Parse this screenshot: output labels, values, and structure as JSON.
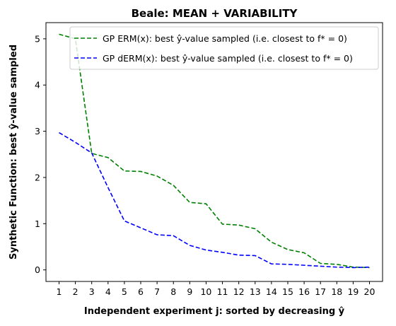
{
  "chart_data": {
    "type": "line",
    "title": "Beale: MEAN + VARIABILITY",
    "xlabel": "Independent experiment j: sorted by decreasing ŷ",
    "ylabel": "Synthetic Function: best ŷ-value sampled",
    "x": [
      1,
      2,
      3,
      4,
      5,
      6,
      7,
      8,
      9,
      10,
      11,
      12,
      13,
      14,
      15,
      16,
      17,
      18,
      19,
      20
    ],
    "xticks": [
      "1",
      "2",
      "3",
      "4",
      "5",
      "6",
      "7",
      "8",
      "9",
      "10",
      "11",
      "12",
      "13",
      "14",
      "15",
      "16",
      "17",
      "18",
      "19",
      "20"
    ],
    "yticks": [
      "0",
      "1",
      "2",
      "3",
      "4",
      "5"
    ],
    "xlim": [
      0.2,
      20.8
    ],
    "ylim": [
      -0.25,
      5.35
    ],
    "grid": false,
    "legend_position": "top-right",
    "series": [
      {
        "name": "GP ERM(x):   best ŷ-value sampled (i.e. closest to f* = 0)",
        "color": "#008000",
        "style": "dashed",
        "values": [
          5.1,
          5.0,
          2.52,
          2.43,
          2.14,
          2.13,
          2.03,
          1.83,
          1.46,
          1.43,
          0.99,
          0.97,
          0.89,
          0.6,
          0.44,
          0.37,
          0.14,
          0.12,
          0.06,
          0.05
        ]
      },
      {
        "name": "GP dERM(x): best ŷ-value sampled (i.e. closest to f* = 0)",
        "color": "#0000ff",
        "style": "dashed",
        "values": [
          2.97,
          2.76,
          2.53,
          1.78,
          1.06,
          0.91,
          0.76,
          0.74,
          0.53,
          0.43,
          0.38,
          0.32,
          0.31,
          0.13,
          0.12,
          0.1,
          0.08,
          0.06,
          0.05,
          0.06
        ]
      }
    ]
  }
}
